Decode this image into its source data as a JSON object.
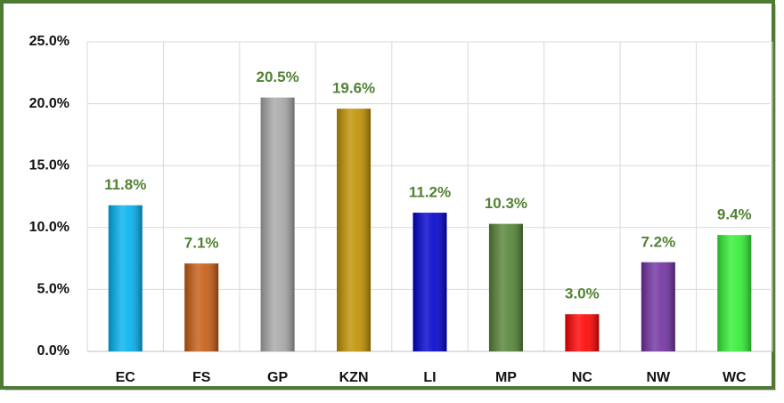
{
  "chart_data": {
    "type": "bar",
    "categories": [
      "EC",
      "FS",
      "GP",
      "KZN",
      "LI",
      "MP",
      "NC",
      "NW",
      "WC"
    ],
    "values": [
      11.8,
      7.1,
      20.5,
      19.6,
      11.2,
      10.3,
      3.0,
      7.2,
      9.4
    ],
    "value_labels": [
      "11.8%",
      "7.1%",
      "20.5%",
      "19.6%",
      "11.2%",
      "10.3%",
      "3.0%",
      "7.2%",
      "9.4%"
    ],
    "colors": [
      "#00b0f0",
      "#c55a11",
      "#a6a6a6",
      "#bf9000",
      "#0000cc",
      "#548235",
      "#ff0000",
      "#7030a0",
      "#33ee33"
    ],
    "ylim": [
      0,
      25
    ],
    "yticks": [
      {
        "value": 0,
        "label": "0.0%"
      },
      {
        "value": 5,
        "label": "5.0%"
      },
      {
        "value": 10,
        "label": "10.0%"
      },
      {
        "value": 15,
        "label": "15.0%"
      },
      {
        "value": 20,
        "label": "20.0%"
      },
      {
        "value": 25,
        "label": "25.0%"
      }
    ],
    "grid": true
  }
}
